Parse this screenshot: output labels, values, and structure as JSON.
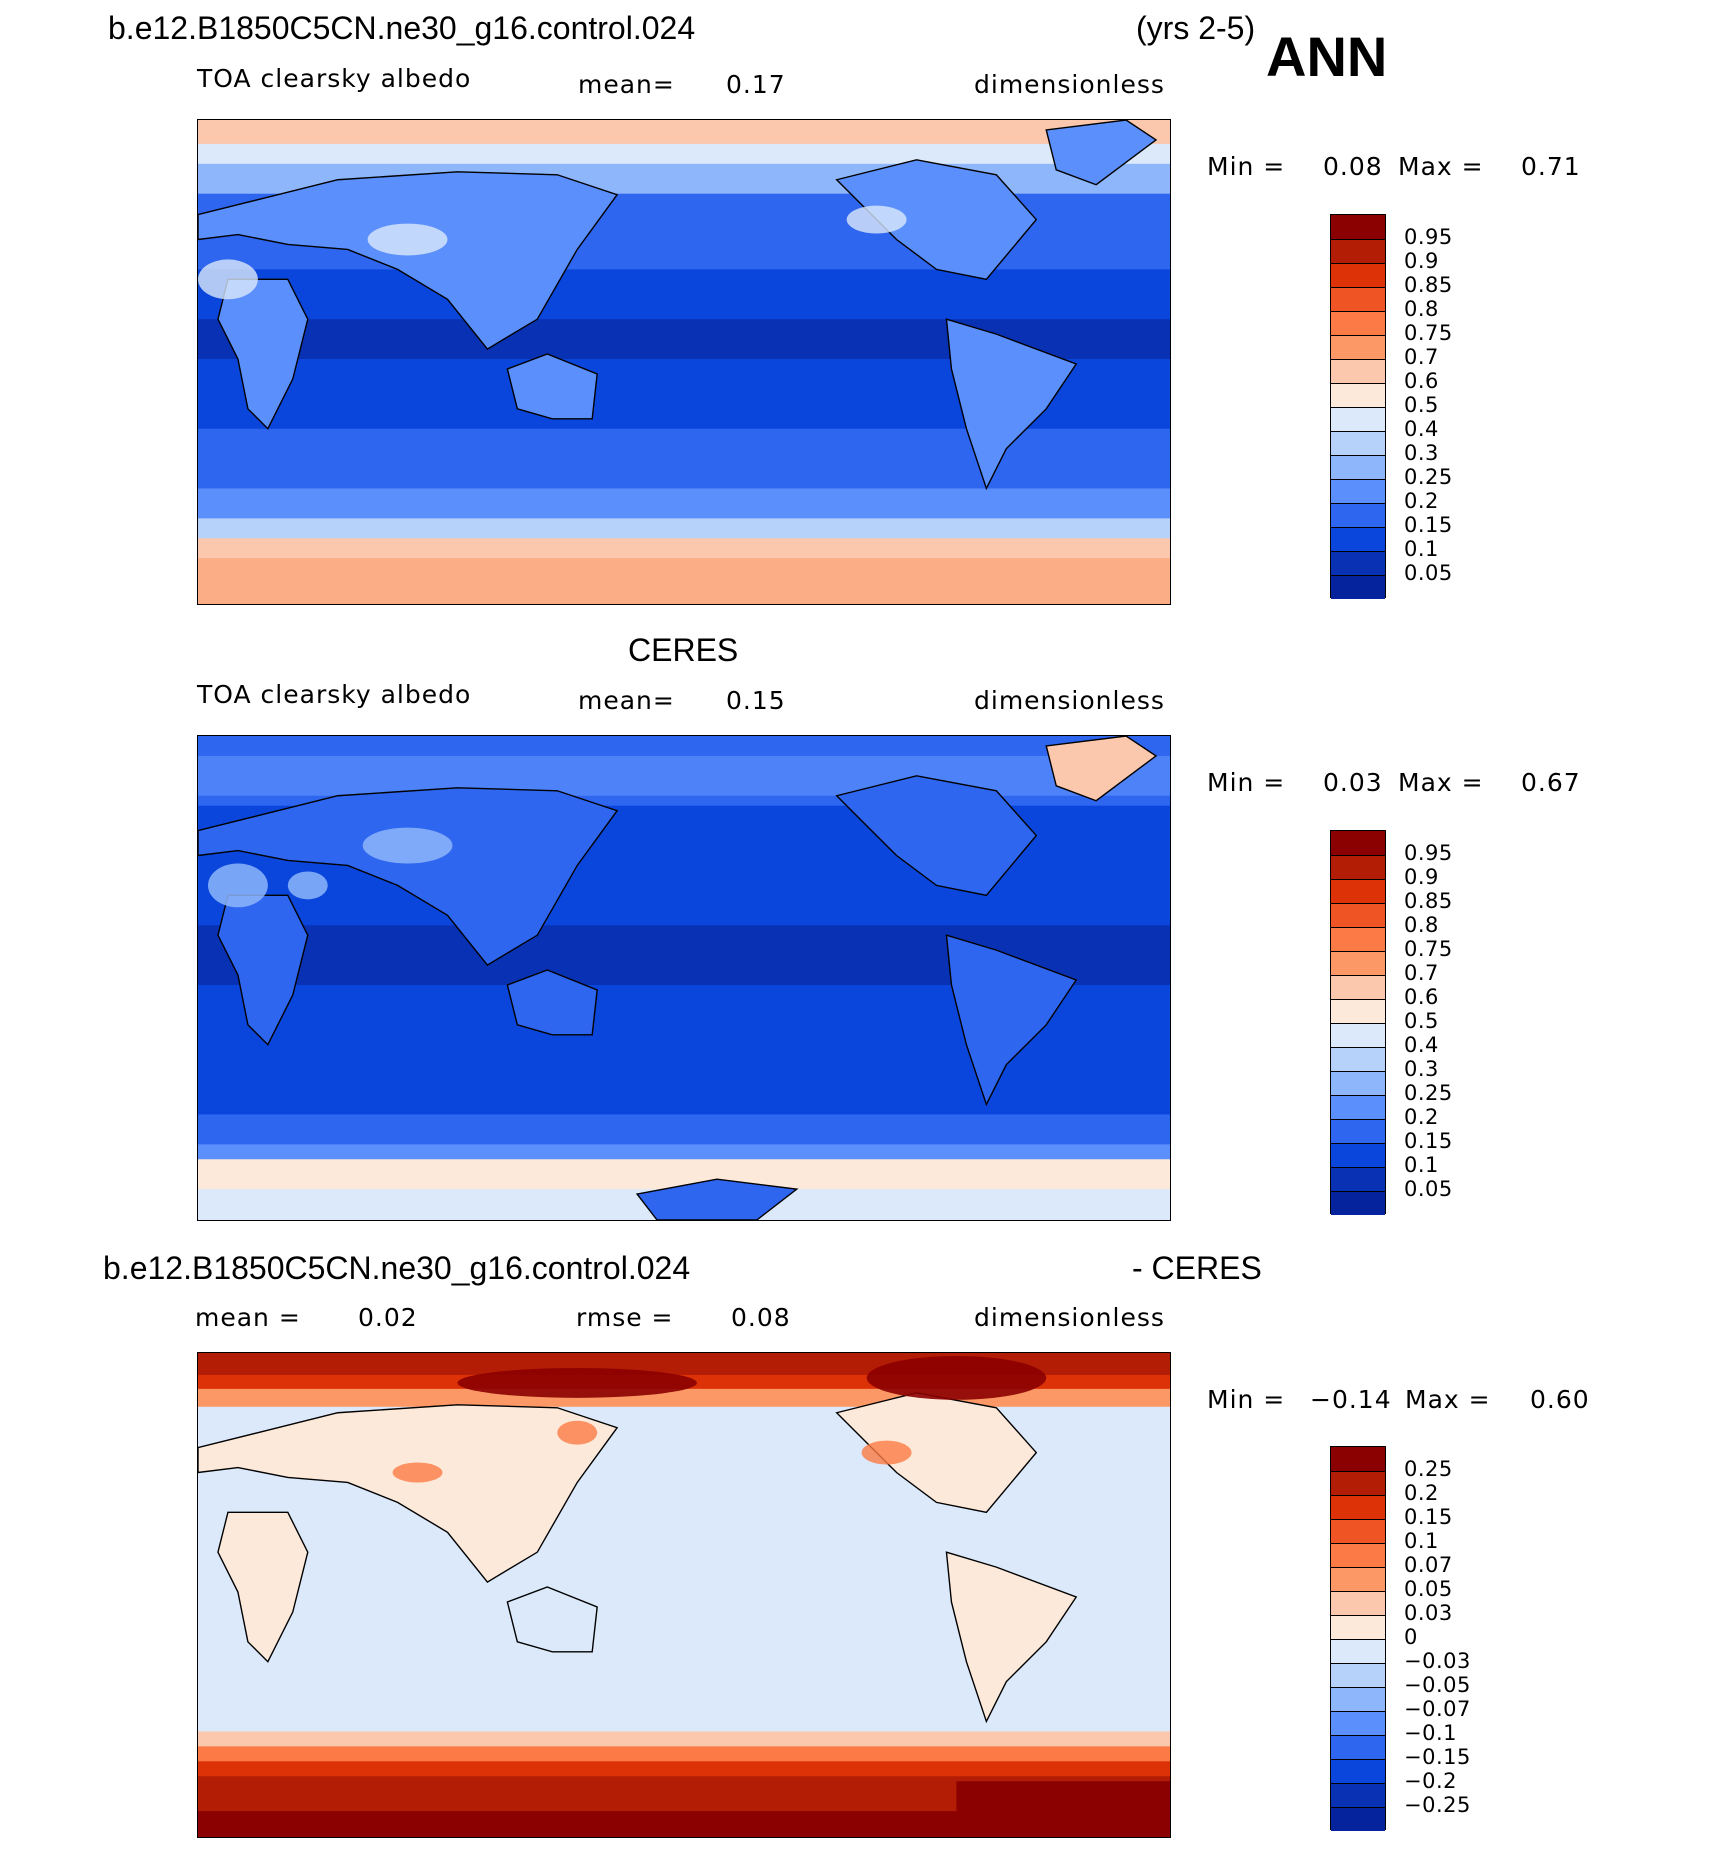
{
  "header": {
    "case_name": "b.e12.B1850C5CN.ne30_g16.control.024",
    "years": "(yrs 2-5)",
    "season": "ANN"
  },
  "panels": [
    {
      "id": "model",
      "title": "",
      "variable": "TOA clearsky albedo",
      "mean_label": "mean=",
      "mean_value": "0.17",
      "units": "dimensionless",
      "min_label": "Min =",
      "min_value": "0.08",
      "max_label": "Max =",
      "max_value": "0.71",
      "colorbar_labels": [
        "0.95",
        "0.9",
        "0.85",
        "0.8",
        "0.75",
        "0.7",
        "0.6",
        "0.5",
        "0.4",
        "0.3",
        "0.25",
        "0.2",
        "0.15",
        "0.1",
        "0.05"
      ],
      "colors": [
        "#8b0000",
        "#b41d05",
        "#dd3208",
        "#ef5425",
        "#fb7a45",
        "#fb9865",
        "#fbc7ad",
        "#fde9da",
        "#dbe9fb",
        "#b6d2fb",
        "#8db6fb",
        "#5b8ffb",
        "#2e66f0",
        "#0a46db",
        "#0832b3",
        "#04239d"
      ]
    },
    {
      "id": "obs",
      "title": "CERES",
      "variable": "TOA clearsky albedo",
      "mean_label": "mean=",
      "mean_value": "0.15",
      "units": "dimensionless",
      "min_label": "Min =",
      "min_value": "0.03",
      "max_label": "Max =",
      "max_value": "0.67",
      "colorbar_labels": [
        "0.95",
        "0.9",
        "0.85",
        "0.8",
        "0.75",
        "0.7",
        "0.6",
        "0.5",
        "0.4",
        "0.3",
        "0.25",
        "0.2",
        "0.15",
        "0.1",
        "0.05"
      ],
      "colors": [
        "#8b0000",
        "#b41d05",
        "#dd3208",
        "#ef5425",
        "#fb7a45",
        "#fb9865",
        "#fbc7ad",
        "#fde9da",
        "#dbe9fb",
        "#b6d2fb",
        "#8db6fb",
        "#5b8ffb",
        "#2e66f0",
        "#0a46db",
        "#0832b3",
        "#04239d"
      ]
    },
    {
      "id": "diff",
      "title_left": "b.e12.B1850C5CN.ne30_g16.control.024",
      "title_right": "- CERES",
      "mean_label": "mean =",
      "mean_value": "0.02",
      "rmse_label": "rmse =",
      "rmse_value": "0.08",
      "units": "dimensionless",
      "min_label": "Min =",
      "min_value": "−0.14",
      "max_label": "Max =",
      "max_value": "0.60",
      "colorbar_labels": [
        "0.25",
        "0.2",
        "0.15",
        "0.1",
        "0.07",
        "0.05",
        "0.03",
        "0",
        "−0.03",
        "−0.05",
        "−0.07",
        "−0.1",
        "−0.15",
        "−0.2",
        "−0.25"
      ],
      "colors": [
        "#8b0000",
        "#b41d05",
        "#dd3208",
        "#ef5425",
        "#fb7a45",
        "#fb9865",
        "#fbc7ad",
        "#fde9da",
        "#dbe9fb",
        "#b6d2fb",
        "#8db6fb",
        "#5b8ffb",
        "#2e66f0",
        "#0a46db",
        "#0832b3",
        "#04239d"
      ]
    }
  ]
}
